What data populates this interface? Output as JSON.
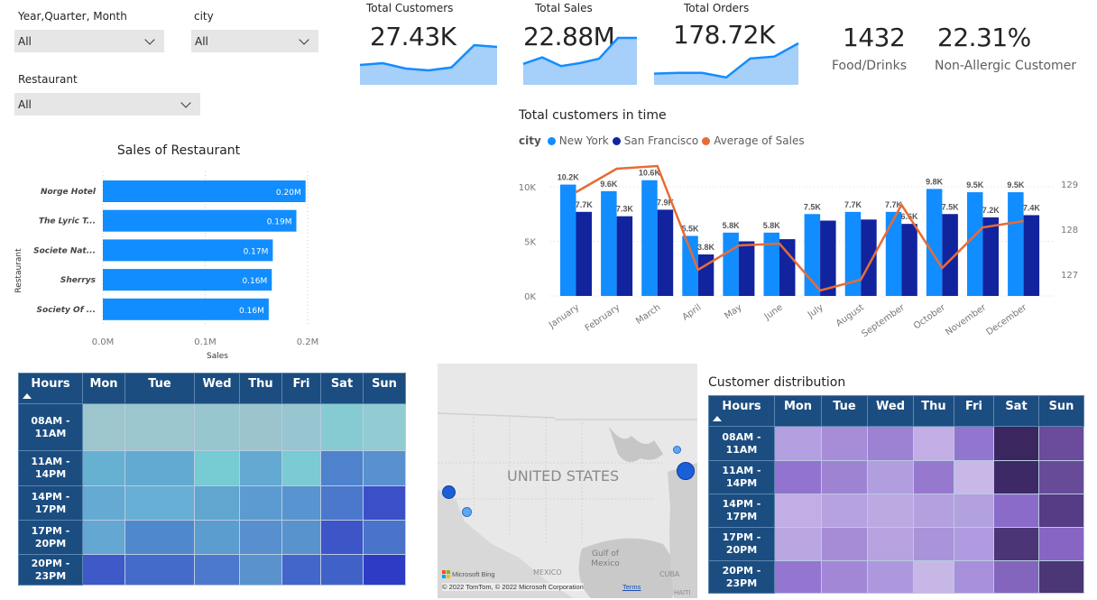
{
  "filters": {
    "date": {
      "label": "Year,Quarter, Month",
      "value": "All"
    },
    "city": {
      "label": "city",
      "value": "All"
    },
    "restaurant": {
      "label": "Restaurant",
      "value": "All"
    }
  },
  "kpis": [
    {
      "title": "Total Customers",
      "value": "27.43K",
      "trend": [
        0.45,
        0.5,
        0.35,
        0.3,
        0.38,
        1.0,
        0.95
      ]
    },
    {
      "title": "Total Sales",
      "value": "22.88M",
      "trend": [
        0.4,
        0.55,
        0.35,
        0.42,
        0.52,
        1.0,
        1.0
      ]
    },
    {
      "title": "Total Orders",
      "value": "178.72K",
      "trend": [
        0.2,
        0.22,
        0.22,
        0.1,
        0.6,
        0.65,
        1.0
      ]
    }
  ],
  "cards": [
    {
      "value": "1432",
      "label": "Food/Drinks"
    },
    {
      "value": "22.31%",
      "label": "Non-Allergic Customer"
    }
  ],
  "colors": {
    "new_york": "#118dff",
    "san_francisco": "#12239e",
    "avg": "#e66c37",
    "bar": "#118dff",
    "header": "#1c4d80"
  },
  "chart_data": [
    {
      "type": "bar",
      "orientation": "horizontal",
      "title": "Sales of Restaurant",
      "xlabel": "Sales",
      "ylabel": "Restaurant",
      "categories": [
        "Norge Hotel",
        "The Lyric T...",
        "Societe Nat...",
        "Sherrys",
        "Society Of ..."
      ],
      "values": [
        0.198,
        0.189,
        0.166,
        0.165,
        0.162
      ],
      "data_labels": [
        "0.20M",
        "0.19M",
        "0.17M",
        "0.16M",
        "0.16M"
      ],
      "xticks": [
        "0.0M",
        "0.1M",
        "0.2M"
      ],
      "xlim": [
        0,
        0.2
      ],
      "unit": "M"
    },
    {
      "type": "bar+line",
      "title": "Total customers in time",
      "legend_title": "city",
      "legend": "top-left",
      "categories": [
        "January",
        "February",
        "March",
        "April",
        "May",
        "June",
        "July",
        "August",
        "September",
        "October",
        "November",
        "December"
      ],
      "series": [
        {
          "name": "New York",
          "axis": "left",
          "values": [
            10.2,
            9.6,
            10.6,
            5.5,
            5.8,
            5.8,
            7.5,
            7.7,
            7.7,
            9.8,
            9.5,
            9.5
          ],
          "labels": [
            "10.2K",
            "9.6K",
            "10.6K",
            "5.5K",
            "5.8K",
            "5.8K",
            "7.5K",
            "7.7K",
            "7.7K",
            "9.8K",
            "9.5K",
            "9.5K"
          ]
        },
        {
          "name": "San Francisco",
          "axis": "left",
          "values": [
            7.7,
            7.3,
            7.9,
            3.8,
            5.0,
            5.2,
            6.9,
            7.0,
            6.6,
            7.5,
            7.2,
            7.4
          ],
          "labels": [
            "7.7K",
            "7.3K",
            "7.9K",
            "3.8K",
            "",
            "",
            "",
            "",
            "6.6K",
            "7.5K",
            "7.2K",
            "7.4K"
          ]
        },
        {
          "name": "Average of Sales",
          "axis": "right",
          "type": "line",
          "values": [
            128.82,
            129.34,
            129.4,
            127.1,
            127.64,
            127.68,
            126.64,
            126.88,
            128.54,
            127.14,
            128.04,
            128.18
          ]
        }
      ],
      "yticks_left": [
        "0K",
        "5K",
        "10K"
      ],
      "ylim_left": [
        0,
        10
      ],
      "yticks_right": [
        "127",
        "128",
        "129"
      ],
      "ylim_right": [
        127,
        129
      ],
      "grid": true
    },
    {
      "type": "heatmap",
      "title": "",
      "row_header": "Hours",
      "columns": [
        "Mon",
        "Tue",
        "Wed",
        "Thu",
        "Fri",
        "Sat",
        "Sun"
      ],
      "rows": [
        "08AM - 11AM",
        "11AM - 14PM",
        "14PM - 17PM",
        "17PM - 20PM",
        "20PM - 23PM"
      ],
      "colors": [
        [
          "#9cc6cc",
          "#9cc6cd",
          "#98c6ce",
          "#9cc4cc",
          "#97c6d0",
          "#87cbd2",
          "#93cbd3"
        ],
        [
          "#66b1d2",
          "#63aad2",
          "#77cbd3",
          "#63a9d1",
          "#7acbd3",
          "#4f82cc",
          "#5891cd"
        ],
        [
          "#65aad2",
          "#68afd5",
          "#60a6cf",
          "#5c9bd1",
          "#5894d0",
          "#4c78cc",
          "#3a4fc8"
        ],
        [
          "#64a7d2",
          "#5088cd",
          "#5c9dd0",
          "#578fcf",
          "#5993ce",
          "#3d55c6",
          "#4a73cb"
        ],
        [
          "#3e59c8",
          "#456bca",
          "#4d79cc",
          "#5a92cd",
          "#4266c9",
          "#4062c8",
          "#2e3bc4"
        ]
      ]
    },
    {
      "type": "heatmap",
      "title": "Customer distribution",
      "row_header": "Hours",
      "columns": [
        "Mon",
        "Tue",
        "Wed",
        "Thu",
        "Fri",
        "Sat",
        "Sun"
      ],
      "rows": [
        "08AM - 11AM",
        "11AM - 14PM",
        "14PM - 17PM",
        "17PM - 20PM",
        "20PM - 23PM"
      ],
      "colors": [
        [
          "#b49fe0",
          "#a78cd8",
          "#9d81d2",
          "#c2aee4",
          "#9275cf",
          "#3c2660",
          "#6a4b9c"
        ],
        [
          "#9273cf",
          "#9e83d3",
          "#b19edf",
          "#9678cf",
          "#c7b8e8",
          "#3d2966",
          "#674b99"
        ],
        [
          "#c2ade4",
          "#b6a2e0",
          "#bca9e2",
          "#b5a0df",
          "#b3a0df",
          "#8b6bc9",
          "#553c84"
        ],
        [
          "#baa6e1",
          "#a68cd7",
          "#b7a3e0",
          "#a993d9",
          "#b09be0",
          "#4c3577",
          "#8765c3"
        ],
        [
          "#9475cf",
          "#a287d6",
          "#ae98dd",
          "#c6b7e7",
          "#a88fdb",
          "#8465bd",
          "#4b3676"
        ]
      ]
    }
  ],
  "map": {
    "labels": {
      "country": "UNITED STATES",
      "gulf": "Gulf of Mexico",
      "mexico": "MEXICO",
      "cuba": "CUBA",
      "haiti": "HAITI"
    },
    "brand": "Microsoft Bing",
    "attribution": "© 2022 TomTom, © 2022 Microsoft Corporation",
    "terms": "Terms"
  }
}
